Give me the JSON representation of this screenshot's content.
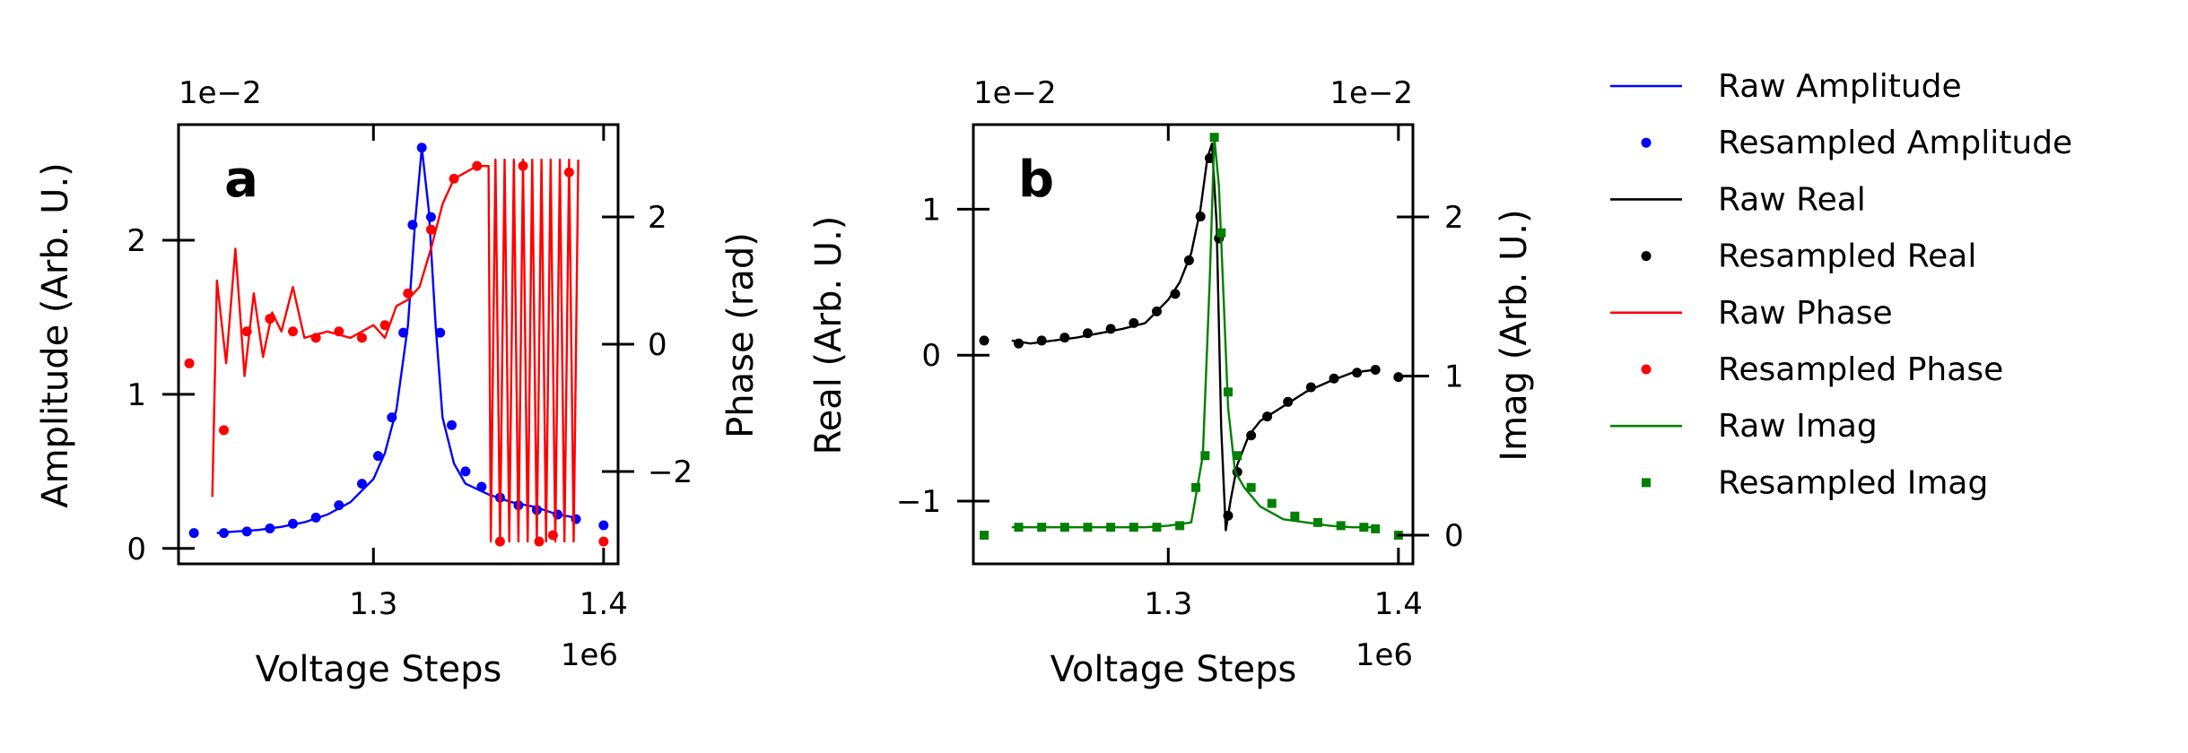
{
  "chart_data": [
    {
      "panel_label": "a",
      "type": "line",
      "xlabel": "Voltage Steps",
      "x_scale_note": "1e6",
      "x_ticks": [
        "1.3",
        "1.4"
      ],
      "xlim": [
        1.2153,
        1.4063
      ],
      "left_axis": {
        "ylabel": "Amplitude (Arb. U.)",
        "scale_note": "1e−2",
        "ticks": [
          "0",
          "1",
          "2"
        ],
        "ylim": [
          -0.1,
          2.75
        ]
      },
      "right_axis": {
        "ylabel": "Phase (rad)",
        "ticks": [
          "−2",
          "0",
          "2"
        ],
        "ylim": [
          -3.45,
          3.45
        ]
      },
      "series": [
        {
          "name": "Raw Amplitude",
          "axis": "left",
          "style": "line",
          "color": "#0000ff",
          "x": [
            1.232,
            1.24,
            1.25,
            1.26,
            1.27,
            1.28,
            1.29,
            1.3,
            1.305,
            1.31,
            1.315,
            1.318,
            1.321,
            1.324,
            1.327,
            1.33,
            1.335,
            1.34,
            1.35,
            1.36,
            1.37,
            1.38,
            1.388
          ],
          "y": [
            0.1,
            0.11,
            0.12,
            0.14,
            0.17,
            0.22,
            0.3,
            0.45,
            0.62,
            0.9,
            1.45,
            2.1,
            2.6,
            2.2,
            1.45,
            0.85,
            0.55,
            0.42,
            0.35,
            0.3,
            0.27,
            0.22,
            0.2
          ]
        },
        {
          "name": "Resampled Amplitude",
          "axis": "left",
          "style": "dot",
          "color": "#0000ff",
          "x": [
            1.222,
            1.235,
            1.245,
            1.255,
            1.265,
            1.275,
            1.285,
            1.295,
            1.302,
            1.308,
            1.313,
            1.317,
            1.321,
            1.325,
            1.329,
            1.334,
            1.34,
            1.347,
            1.355,
            1.363,
            1.371,
            1.38,
            1.388,
            1.4
          ],
          "y": [
            0.1,
            0.1,
            0.11,
            0.13,
            0.16,
            0.2,
            0.28,
            0.42,
            0.6,
            0.85,
            1.4,
            2.1,
            2.6,
            2.15,
            1.4,
            0.8,
            0.5,
            0.4,
            0.33,
            0.28,
            0.25,
            0.22,
            0.19,
            0.15
          ]
        },
        {
          "name": "Raw Phase",
          "axis": "right",
          "style": "line",
          "color": "#ff0000",
          "x": [
            1.23,
            1.232,
            1.236,
            1.24,
            1.244,
            1.248,
            1.252,
            1.256,
            1.26,
            1.265,
            1.27,
            1.28,
            1.29,
            1.3,
            1.305,
            1.31,
            1.315,
            1.32,
            1.325,
            1.33,
            1.335,
            1.34,
            1.345,
            1.35,
            1.351,
            1.353,
            1.355,
            1.357,
            1.359,
            1.361,
            1.363,
            1.365,
            1.367,
            1.369,
            1.371,
            1.373,
            1.375,
            1.377,
            1.379,
            1.381,
            1.383,
            1.385,
            1.387,
            1.389
          ],
          "y": [
            -2.4,
            1.0,
            -0.3,
            1.5,
            -0.5,
            0.8,
            -0.2,
            0.5,
            0.2,
            0.9,
            0.1,
            0.2,
            0.1,
            0.3,
            0.1,
            0.6,
            0.7,
            0.9,
            1.5,
            2.2,
            2.6,
            2.7,
            2.8,
            2.8,
            -3.1,
            2.9,
            -3.1,
            2.9,
            -3.1,
            2.9,
            -3.1,
            2.9,
            -3.1,
            2.9,
            -3.1,
            2.9,
            -3.1,
            2.9,
            -3.1,
            2.9,
            -3.1,
            2.9,
            -3.1,
            2.9
          ]
        },
        {
          "name": "Resampled Phase",
          "axis": "right",
          "style": "dot",
          "color": "#ff0000",
          "x": [
            1.22,
            1.235,
            1.245,
            1.255,
            1.265,
            1.275,
            1.285,
            1.295,
            1.305,
            1.315,
            1.325,
            1.335,
            1.345,
            1.355,
            1.365,
            1.372,
            1.378,
            1.385,
            1.4
          ],
          "y": [
            -0.3,
            -1.35,
            0.2,
            0.4,
            0.2,
            0.1,
            0.2,
            0.1,
            0.3,
            0.8,
            1.8,
            2.6,
            2.8,
            -3.1,
            2.8,
            -3.1,
            -3.0,
            2.7,
            -3.1
          ]
        }
      ]
    },
    {
      "panel_label": "b",
      "type": "line",
      "xlabel": "Voltage Steps",
      "x_scale_note": "1e6",
      "x_ticks": [
        "1.3",
        "1.4"
      ],
      "xlim": [
        1.2153,
        1.4063
      ],
      "left_axis": {
        "ylabel": "Real (Arb. U.)",
        "scale_note": "1e−2",
        "ticks": [
          "−1",
          "0",
          "1"
        ],
        "ylim": [
          -1.43,
          1.58
        ]
      },
      "right_axis": {
        "ylabel": "Imag (Arb. U.)",
        "scale_note": "1e−2",
        "ticks": [
          "0",
          "1",
          "2"
        ],
        "ylim": [
          -0.18,
          2.58
        ]
      },
      "series": [
        {
          "name": "Raw Real",
          "axis": "left",
          "style": "line",
          "color": "#000000",
          "x": [
            1.232,
            1.24,
            1.25,
            1.26,
            1.27,
            1.28,
            1.29,
            1.295,
            1.3,
            1.305,
            1.31,
            1.314,
            1.317,
            1.319,
            1.321,
            1.323,
            1.325,
            1.327,
            1.33,
            1.335,
            1.34,
            1.35,
            1.36,
            1.37,
            1.38,
            1.39
          ],
          "y": [
            0.1,
            0.08,
            0.1,
            0.12,
            0.15,
            0.18,
            0.22,
            0.3,
            0.38,
            0.5,
            0.7,
            1.0,
            1.35,
            1.45,
            0.9,
            -0.5,
            -1.2,
            -1.0,
            -0.75,
            -0.55,
            -0.45,
            -0.35,
            -0.25,
            -0.18,
            -0.12,
            -0.1
          ]
        },
        {
          "name": "Resampled Real",
          "axis": "left",
          "style": "dot",
          "color": "#000000",
          "x": [
            1.22,
            1.235,
            1.245,
            1.255,
            1.265,
            1.275,
            1.285,
            1.295,
            1.303,
            1.309,
            1.314,
            1.318,
            1.322,
            1.326,
            1.33,
            1.336,
            1.343,
            1.352,
            1.362,
            1.372,
            1.382,
            1.39,
            1.4
          ],
          "y": [
            0.1,
            0.08,
            0.1,
            0.12,
            0.15,
            0.18,
            0.22,
            0.3,
            0.42,
            0.65,
            0.95,
            1.35,
            0.8,
            -1.1,
            -0.8,
            -0.55,
            -0.42,
            -0.32,
            -0.22,
            -0.16,
            -0.12,
            -0.1,
            -0.15
          ]
        },
        {
          "name": "Raw Imag",
          "axis": "right",
          "style": "line",
          "color": "#008000",
          "x": [
            1.232,
            1.25,
            1.27,
            1.29,
            1.3,
            1.31,
            1.315,
            1.318,
            1.32,
            1.322,
            1.324,
            1.326,
            1.329,
            1.333,
            1.34,
            1.35,
            1.36,
            1.37,
            1.38,
            1.39
          ],
          "y": [
            0.05,
            0.05,
            0.05,
            0.05,
            0.06,
            0.08,
            0.5,
            1.6,
            2.5,
            2.2,
            1.5,
            0.8,
            0.4,
            0.3,
            0.18,
            0.1,
            0.08,
            0.06,
            0.05,
            0.05
          ]
        },
        {
          "name": "Resampled Imag",
          "axis": "right",
          "style": "square",
          "color": "#008000",
          "x": [
            1.22,
            1.235,
            1.245,
            1.255,
            1.265,
            1.275,
            1.285,
            1.295,
            1.305,
            1.312,
            1.316,
            1.32,
            1.323,
            1.326,
            1.33,
            1.336,
            1.345,
            1.355,
            1.365,
            1.375,
            1.385,
            1.39,
            1.4
          ],
          "y": [
            0.0,
            0.05,
            0.05,
            0.05,
            0.05,
            0.05,
            0.05,
            0.05,
            0.06,
            0.3,
            0.5,
            2.5,
            1.9,
            0.9,
            0.5,
            0.3,
            0.2,
            0.12,
            0.08,
            0.06,
            0.05,
            0.04,
            0.0
          ]
        }
      ]
    }
  ],
  "legend": {
    "placement": "right",
    "entries": [
      {
        "label": "Raw Amplitude",
        "marker": "line",
        "color": "#0000ff"
      },
      {
        "label": "Resampled Amplitude",
        "marker": "dot",
        "color": "#0000ff"
      },
      {
        "label": "Raw Real",
        "marker": "line",
        "color": "#000000"
      },
      {
        "label": "Resampled Real",
        "marker": "dot",
        "color": "#000000"
      },
      {
        "label": "Raw Phase",
        "marker": "line",
        "color": "#ff0000"
      },
      {
        "label": "Resampled Phase",
        "marker": "dot",
        "color": "#ff0000"
      },
      {
        "label": "Raw Imag",
        "marker": "line",
        "color": "#008000"
      },
      {
        "label": "Resampled Imag",
        "marker": "square",
        "color": "#008000"
      }
    ]
  }
}
